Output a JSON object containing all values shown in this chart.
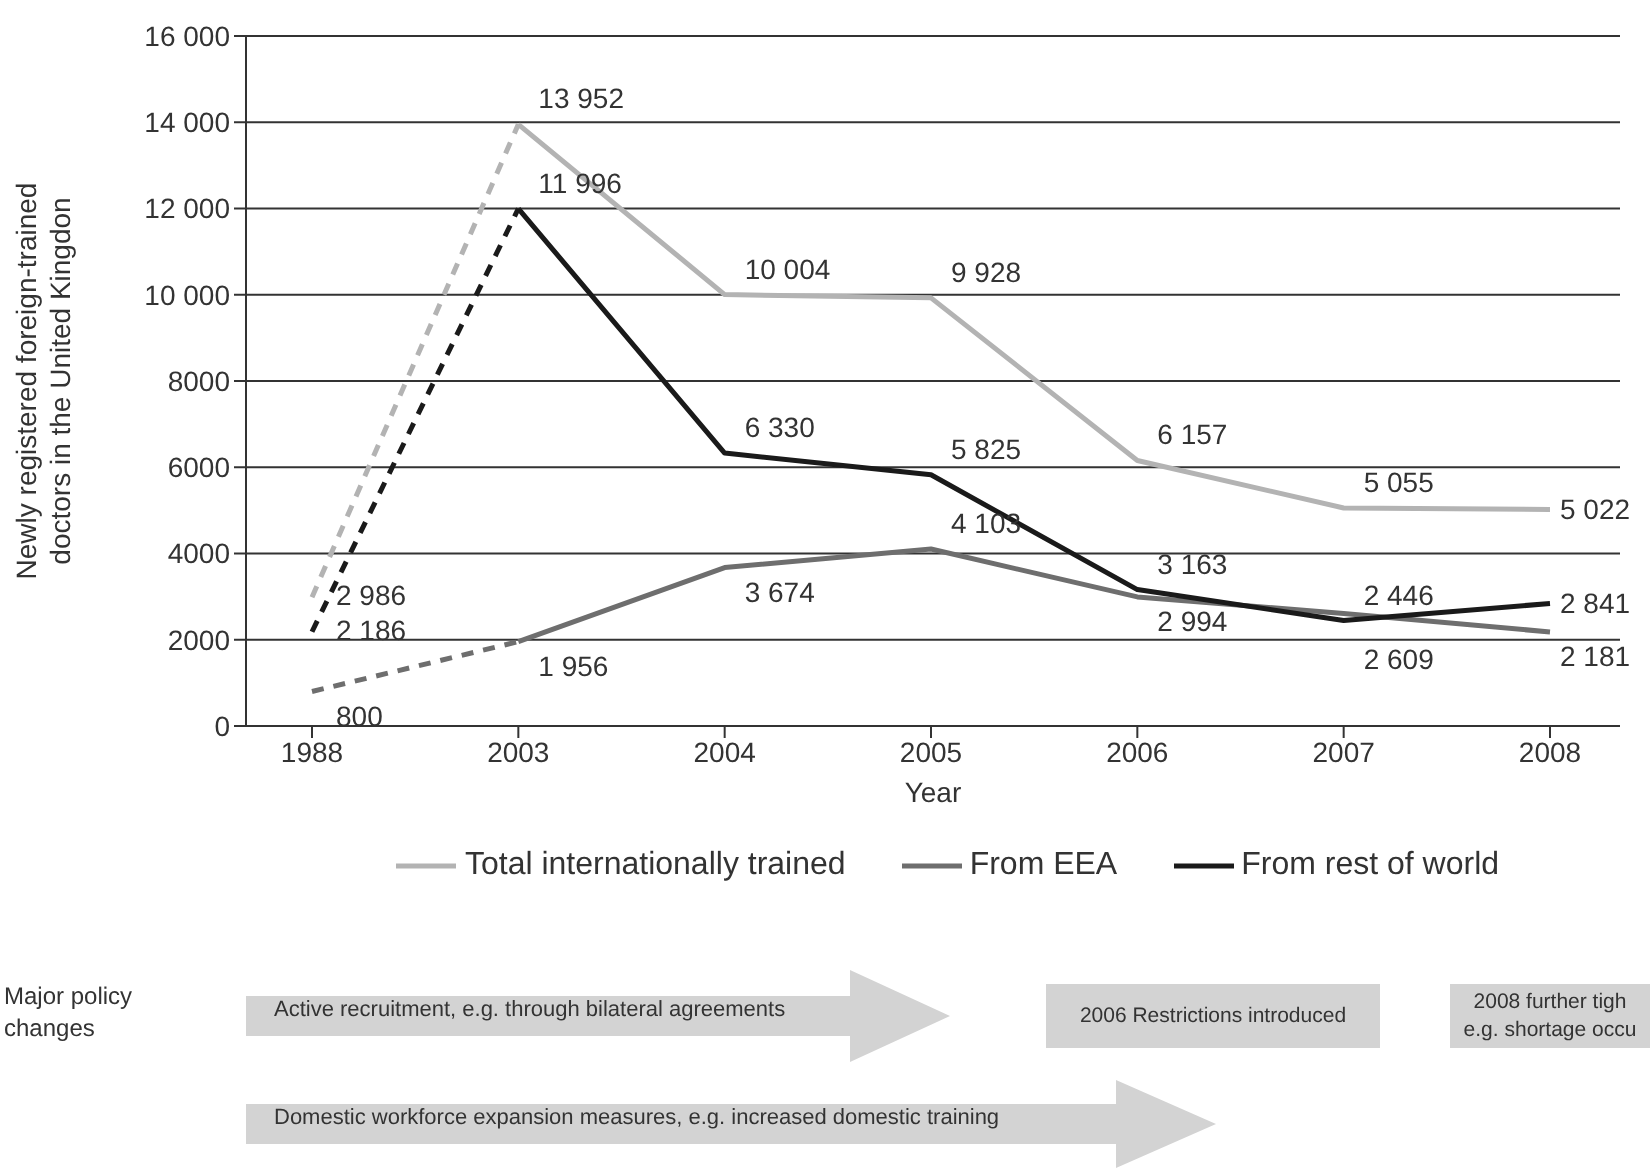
{
  "chart_data": {
    "type": "line",
    "xlabel": "Year",
    "ylabel": "Newly registered foreign-trained doctors in the United Kingdon",
    "categories": [
      "1988",
      "2003",
      "2004",
      "2005",
      "2006",
      "2007",
      "2008"
    ],
    "ylim": [
      0,
      16000
    ],
    "yticks": [
      0,
      2000,
      4000,
      6000,
      8000,
      {
        "value": 10000,
        "label": "10 000"
      },
      {
        "value": 12000,
        "label": "12 000"
      },
      {
        "value": 14000,
        "label": "14 000"
      },
      {
        "value": 16000,
        "label": "16 000"
      }
    ],
    "grid": "y",
    "legend": "bottom",
    "marker": "none",
    "series": [
      {
        "name": "Total internationally trained",
        "color": "#b3b3b3",
        "line_style": "solid",
        "values": [
          null,
          13952,
          10004,
          9928,
          6157,
          5055,
          5022
        ],
        "value_labels": [
          null,
          "13 952",
          "10 004",
          "9 928",
          "6 157",
          "5 055",
          "5 022"
        ]
      },
      {
        "name": "From EEA",
        "color": "#6e6e6e",
        "line_style": "solid",
        "values": [
          null,
          1956,
          3674,
          4103,
          2994,
          2609,
          2181
        ],
        "value_labels": [
          null,
          "1 956",
          "3 674",
          "4 103",
          "2 994",
          "2 609",
          "2 181"
        ]
      },
      {
        "name": "From rest of world",
        "color": "#1a1a1a",
        "line_style": "solid",
        "values": [
          null,
          11996,
          6330,
          5825,
          3163,
          2446,
          2841
        ],
        "value_labels": [
          null,
          "11 996",
          "6 330",
          "5 825",
          "3 163",
          "2 446",
          "2 841"
        ]
      },
      {
        "color": "#b3b3b3",
        "line_style": "dashed",
        "values": [
          2986,
          13952,
          null,
          null,
          null,
          null,
          null
        ],
        "value_labels": [
          "2 986",
          null,
          null,
          null,
          null,
          null,
          null
        ]
      },
      {
        "color": "#6e6e6e",
        "line_style": "dashed",
        "values": [
          800,
          1956,
          null,
          null,
          null,
          null,
          null
        ],
        "value_labels": [
          "800",
          null,
          null,
          null,
          null,
          null,
          null
        ]
      },
      {
        "color": "#1a1a1a",
        "line_style": "dashed",
        "values": [
          2186,
          11996,
          null,
          null,
          null,
          null,
          null
        ],
        "value_labels": [
          "2 186",
          null,
          null,
          null,
          null,
          null,
          null
        ]
      }
    ],
    "annotations": [
      "Major policy changes",
      "Active recruitment, e.g. through bilateral agreements",
      "2006 Restrictions introduced",
      "2008 further tigh e.g. shortage occu",
      "Domestic workforce expansion measures, e.g. increased domestic training"
    ]
  }
}
